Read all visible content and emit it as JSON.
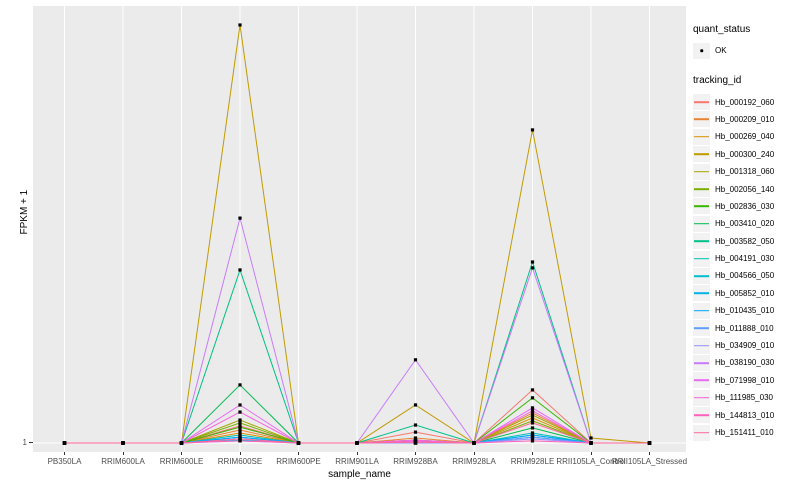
{
  "figure": {
    "background": "#FFFFFF",
    "panel_background": "#EBEBEB",
    "grid_color": "#FFFFFF",
    "tick_label_color": "#4D4D4D",
    "point_color": "#000000"
  },
  "y_axis": {
    "title": "FPKM + 1",
    "ticks": [
      "1"
    ]
  },
  "x_axis": {
    "title": "sample_name"
  },
  "legend": {
    "quant_status": {
      "title": "quant_status",
      "items": [
        {
          "label": "OK",
          "marker": "black-point"
        }
      ]
    },
    "tracking_id": {
      "title": "tracking_id"
    }
  },
  "chart_data": {
    "type": "line",
    "title": "",
    "xlabel": "sample_name",
    "ylabel": "FPKM + 1",
    "y_axis_visible_ticks": [
      "1"
    ],
    "y_scale_note": "log-style axis; only the tick '1' is labeled at the baseline. Series values below are relative heights (0-1) above the FPKM+1 = 1 baseline, where 1.0 is the tallest peak (Hb_000300_240 at RRIM600SE).",
    "grid": "major vertical gridline per sample; horizontal gridline at y=1",
    "legend_position": "right",
    "categories": [
      "PB350LA",
      "RRIM600LA",
      "RRIM600LE",
      "RRIM600SE",
      "RRIM600PE",
      "RRIM901LA",
      "RRIM928BA",
      "RRIM928LA",
      "RRIM928LE",
      "RRII105LA_Control",
      "RRII105LA_Stressed"
    ],
    "point_marker": {
      "shape": "small-filled-point",
      "color": "#000000",
      "legend_label": "OK",
      "legend_title": "quant_status"
    },
    "series": [
      {
        "name": "Hb_000192_060",
        "color": "#F8766D",
        "values": [
          0,
          0,
          0,
          0.041,
          0,
          0,
          0.026,
          0,
          0.127,
          0,
          0
        ]
      },
      {
        "name": "Hb_000209_010",
        "color": "#EA8331",
        "values": [
          0,
          0,
          0,
          0.031,
          0,
          0,
          0.012,
          0,
          0.072,
          0,
          0
        ]
      },
      {
        "name": "Hb_000269_040",
        "color": "#D89000",
        "values": [
          0,
          0,
          0,
          0.024,
          0,
          0,
          0.007,
          0,
          0.06,
          0,
          0
        ]
      },
      {
        "name": "Hb_000300_240",
        "color": "#C09B00",
        "values": [
          0,
          0,
          0,
          1.0,
          0,
          0,
          0.091,
          0,
          0.749,
          0.012,
          0
        ]
      },
      {
        "name": "Hb_001318_060",
        "color": "#A3A500",
        "values": [
          0,
          0,
          0,
          0.055,
          0,
          0,
          0.007,
          0,
          0.067,
          0,
          0
        ]
      },
      {
        "name": "Hb_002056_140",
        "color": "#7CAE00",
        "values": [
          0,
          0,
          0,
          0.048,
          0,
          0,
          0.005,
          0,
          0.053,
          0,
          0
        ]
      },
      {
        "name": "Hb_002836_030",
        "color": "#39B600",
        "values": [
          0,
          0,
          0,
          0.038,
          0,
          0,
          0.005,
          0,
          0.108,
          0,
          0
        ]
      },
      {
        "name": "Hb_003410_020",
        "color": "#00BB4E",
        "values": [
          0,
          0,
          0,
          0.139,
          0,
          0,
          0.005,
          0,
          0.036,
          0,
          0
        ]
      },
      {
        "name": "Hb_003582_050",
        "color": "#00C087",
        "values": [
          0,
          0,
          0,
          0.414,
          0,
          0,
          0.043,
          0,
          0.433,
          0,
          0
        ]
      },
      {
        "name": "Hb_004191_030",
        "color": "#00C0B2",
        "values": [
          0,
          0,
          0,
          0.019,
          0,
          0,
          0.005,
          0,
          0.024,
          0,
          0
        ]
      },
      {
        "name": "Hb_004566_050",
        "color": "#00BDD0",
        "values": [
          0,
          0,
          0,
          0.007,
          0,
          0,
          0,
          0,
          0.019,
          0,
          0
        ]
      },
      {
        "name": "Hb_005852_010",
        "color": "#00B4E9",
        "values": [
          0,
          0,
          0,
          0.014,
          0,
          0,
          0,
          0,
          0.014,
          0,
          0
        ]
      },
      {
        "name": "Hb_010435_010",
        "color": "#00A5FF",
        "values": [
          0,
          0,
          0,
          0.014,
          0,
          0,
          0,
          0,
          0.019,
          0,
          0
        ]
      },
      {
        "name": "Hb_011888_010",
        "color": "#619CFF",
        "values": [
          0,
          0,
          0,
          0.01,
          0,
          0,
          0,
          0,
          0.014,
          0,
          0
        ]
      },
      {
        "name": "Hb_034909_010",
        "color": "#9590FF",
        "values": [
          0,
          0,
          0,
          0.005,
          0,
          0,
          0,
          0,
          0.01,
          0,
          0
        ]
      },
      {
        "name": "Hb_038190_030",
        "color": "#C77CFF",
        "values": [
          0,
          0,
          0,
          0.538,
          0,
          0,
          0.199,
          0,
          0.419,
          0,
          0
        ]
      },
      {
        "name": "Hb_071998_010",
        "color": "#E76BF3",
        "values": [
          0,
          0,
          0,
          0.091,
          0,
          0,
          0.007,
          0,
          0.084,
          0,
          0
        ]
      },
      {
        "name": "Hb_111985_030",
        "color": "#FA62DB",
        "values": [
          0,
          0,
          0,
          0.074,
          0,
          0,
          0.005,
          0,
          0.077,
          0,
          0
        ]
      },
      {
        "name": "Hb_144813_010",
        "color": "#FF62BC",
        "values": [
          0,
          0,
          0,
          0.005,
          0,
          0,
          0.002,
          0,
          0.005,
          0,
          0
        ]
      },
      {
        "name": "Hb_151411_010",
        "color": "#FF6A98",
        "values": [
          0,
          0,
          0,
          0.01,
          0,
          0,
          0.002,
          0,
          0.048,
          0,
          0
        ]
      }
    ]
  }
}
